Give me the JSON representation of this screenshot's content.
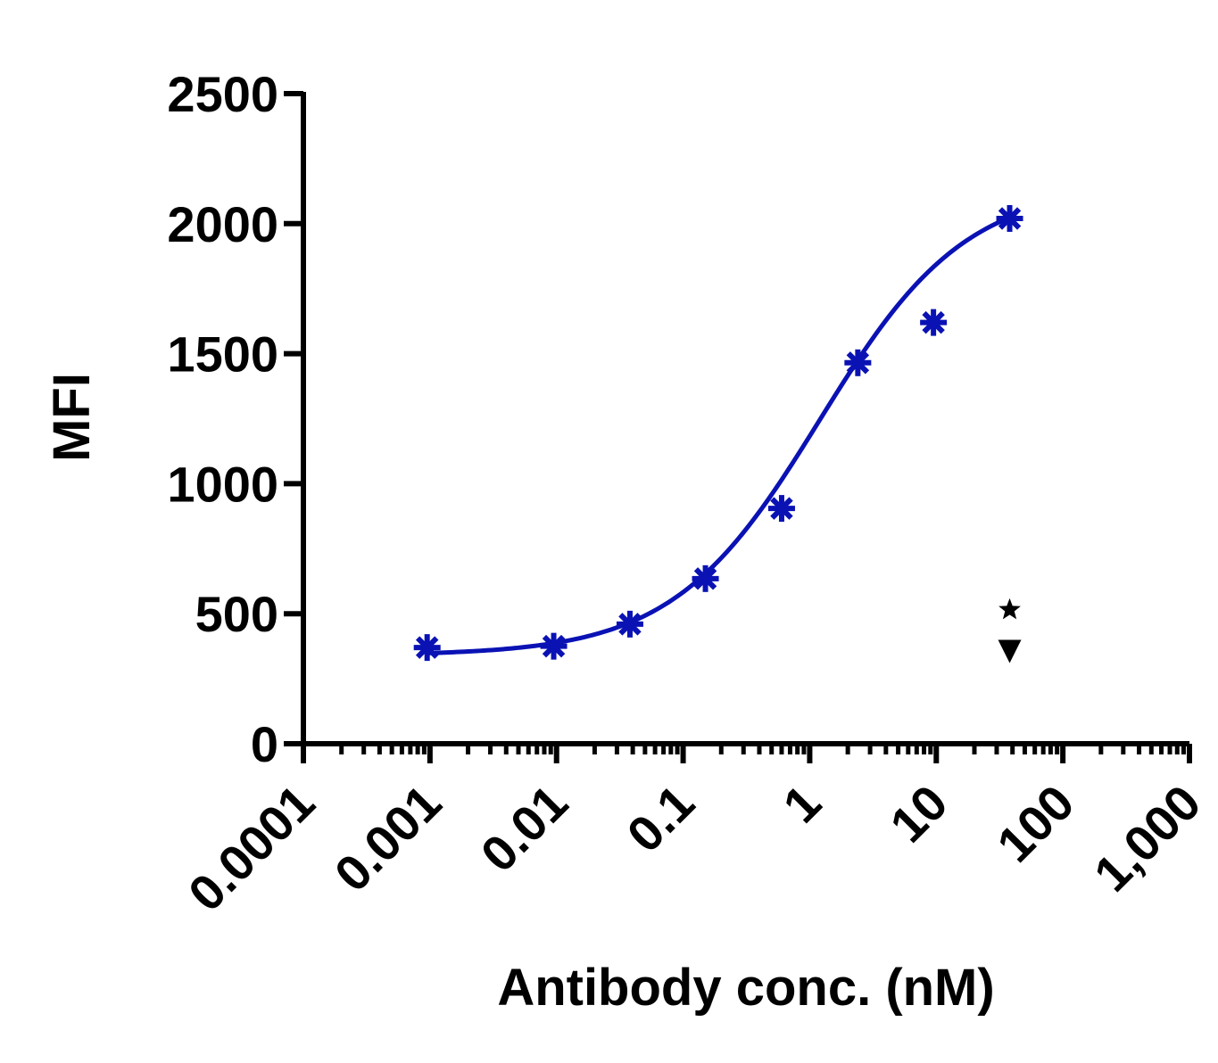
{
  "chart_data": {
    "type": "scatter",
    "title": "",
    "xlabel": "Antibody conc. (nM)",
    "ylabel": "MFI",
    "x_scale": "log",
    "xlim": [
      0.0001,
      1000
    ],
    "ylim": [
      0,
      2500
    ],
    "x_ticks": [
      0.0001,
      0.001,
      0.01,
      0.1,
      1,
      10,
      100,
      1000
    ],
    "x_tick_labels": [
      "0.0001",
      "0.001",
      "0.01",
      "0.1",
      "1",
      "10",
      "100",
      "1,000"
    ],
    "y_ticks": [
      0,
      500,
      1000,
      1500,
      2000,
      2500
    ],
    "y_tick_labels": [
      "0",
      "500",
      "1000",
      "1500",
      "2000",
      "2500"
    ],
    "grid": false,
    "legend": "none",
    "series_color": "#0a12b4",
    "series": [
      {
        "marker": "asterisk",
        "x": [
          0.00095,
          0.0095,
          0.038,
          0.15,
          0.6,
          2.4,
          9.5,
          38
        ],
        "y": [
          370,
          375,
          460,
          635,
          905,
          1465,
          1620,
          2020
        ]
      }
    ],
    "fit_curve": {
      "model": "4PL",
      "bottom": 340,
      "top": 2150,
      "ec50": 1.2,
      "hill": 0.75,
      "x_range": [
        0.00095,
        38
      ]
    },
    "annotations": [
      {
        "marker": "star",
        "x": 38,
        "y": 515
      },
      {
        "marker": "triangle-down",
        "x": 38,
        "y": 355
      }
    ]
  }
}
